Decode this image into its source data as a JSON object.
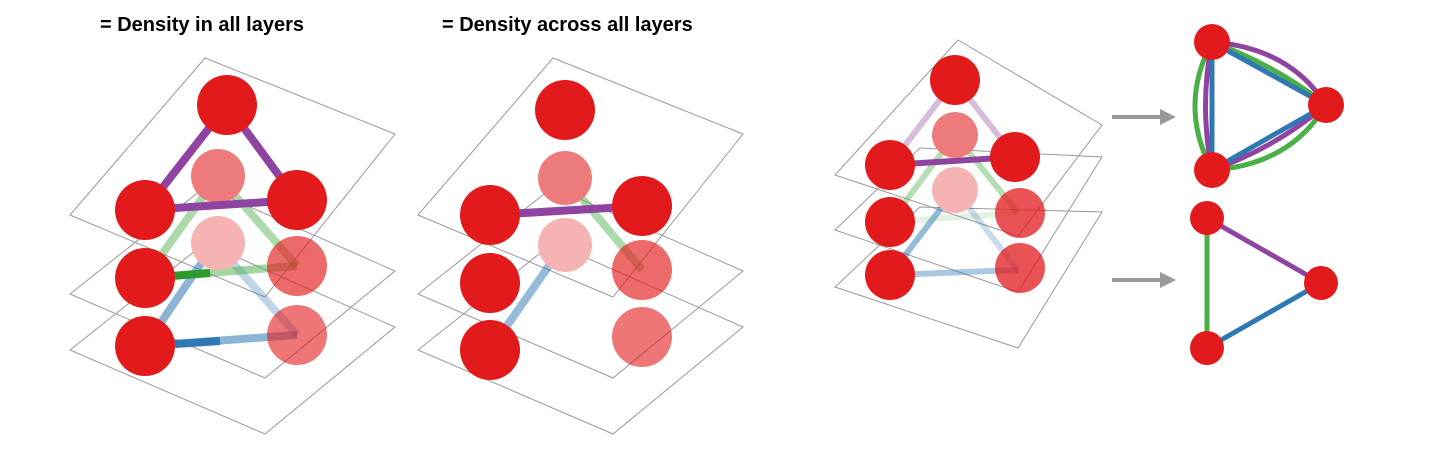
{
  "titles": {
    "left": "= Density in all layers",
    "middle": "= Density across all layers"
  },
  "colors": {
    "node": "#e31a1c",
    "purple": "#8e44a0",
    "green": "#4aaf47",
    "blue": "#2f78b4",
    "arrow": "#999999",
    "layer_border": "#999999"
  },
  "panels": [
    {
      "name": "density-in-all-layers",
      "layers": 3,
      "nodes_per_layer": 3
    },
    {
      "name": "density-across-all-layers",
      "layers": 3,
      "nodes_per_layer": 3
    },
    {
      "name": "multiplex-to-aggregate",
      "layers": 3,
      "nodes_per_layer": 3
    }
  ],
  "aggregates": [
    {
      "name": "multigraph",
      "edges": [
        "purple",
        "green",
        "blue",
        "purple",
        "green",
        "blue",
        "purple",
        "green",
        "blue"
      ]
    },
    {
      "name": "simple-graph",
      "edges": [
        "purple",
        "green",
        "blue"
      ]
    }
  ]
}
